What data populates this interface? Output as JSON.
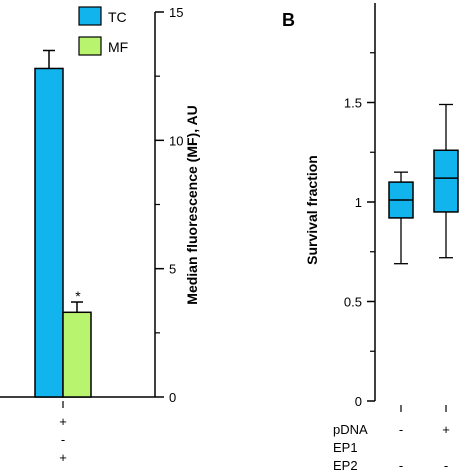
{
  "chart_data": [
    {
      "type": "bar",
      "panel": "A",
      "series": [
        {
          "name": "TC",
          "color": "#12b4ee",
          "values": [
            12.8
          ],
          "error": [
            0.7
          ]
        },
        {
          "name": "MF",
          "color": "#b9f46e",
          "values": [
            3.3
          ],
          "error": [
            0.4
          ]
        }
      ],
      "annotations": [
        "*"
      ],
      "ylabel": "Median fluorescence (MF), AU",
      "ylim": [
        0,
        15
      ],
      "yticks": [
        "0",
        "5",
        "10",
        "15"
      ],
      "condition_rows": [
        [
          "+"
        ],
        [
          "-"
        ],
        [
          "+"
        ]
      ]
    },
    {
      "type": "box",
      "panel": "B",
      "title": "B",
      "ylabel": "Survival fraction",
      "ylim": [
        0,
        2.0
      ],
      "yticks": [
        "0",
        "0.5",
        "1",
        "1.5"
      ],
      "box_color": "#12b4ee",
      "boxes": [
        {
          "min": 0.69,
          "q1": 0.92,
          "median": 1.01,
          "q3": 1.1,
          "max": 1.15
        },
        {
          "min": 0.72,
          "q1": 0.95,
          "median": 1.12,
          "q3": 1.26,
          "max": 1.49
        }
      ],
      "condition_labels": [
        "pDNA",
        "EP1",
        "EP2"
      ],
      "conditions": [
        [
          "-",
          "+"
        ],
        [
          "",
          ""
        ],
        [
          "-",
          "-"
        ]
      ]
    }
  ]
}
